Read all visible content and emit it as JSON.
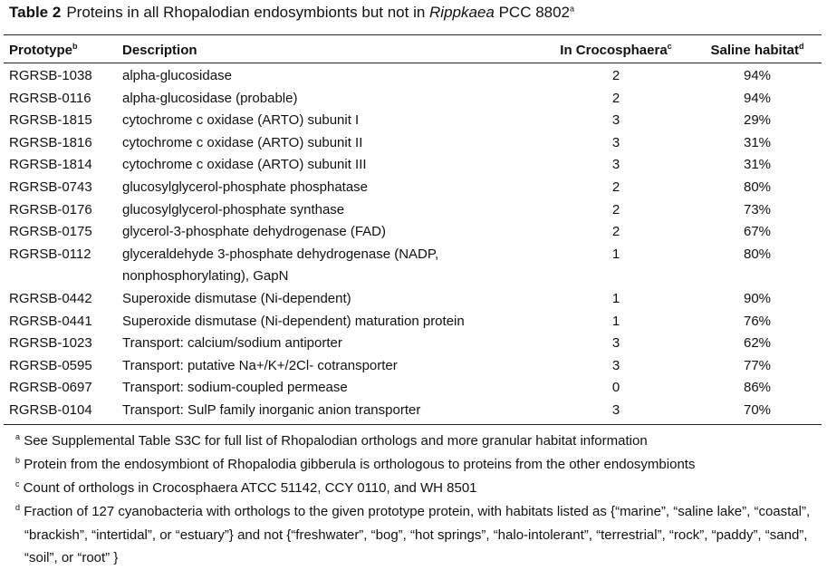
{
  "caption": {
    "label": "Table 2",
    "text_pre": "Proteins in all Rhopalodian endosymbionts but not in ",
    "text_italic": "Rippkaea",
    "text_post": " PCC 8802",
    "sup": "a"
  },
  "headers": {
    "prototype": "Prototype",
    "prototype_sup": "b",
    "description": "Description",
    "crocosphaera": "In Crocosphaera",
    "crocosphaera_sup": "c",
    "saline": "Saline habitat",
    "saline_sup": "d"
  },
  "rows": [
    {
      "prototype": "RGRSB-1038",
      "description": "alpha-glucosidase",
      "crocosphaera": "2",
      "saline": "94%"
    },
    {
      "prototype": "RGRSB-0116",
      "description": "alpha-glucosidase (probable)",
      "crocosphaera": "2",
      "saline": "94%"
    },
    {
      "prototype": "RGRSB-1815",
      "description": "cytochrome c oxidase (ARTO) subunit I",
      "crocosphaera": "3",
      "saline": "29%"
    },
    {
      "prototype": "RGRSB-1816",
      "description": "cytochrome c oxidase (ARTO) subunit II",
      "crocosphaera": "3",
      "saline": "31%"
    },
    {
      "prototype": "RGRSB-1814",
      "description": "cytochrome c oxidase (ARTO) subunit III",
      "crocosphaera": "3",
      "saline": "31%"
    },
    {
      "prototype": "RGRSB-0743",
      "description": "glucosylglycerol-phosphate phosphatase",
      "crocosphaera": "2",
      "saline": "80%"
    },
    {
      "prototype": "RGRSB-0176",
      "description": "glucosylglycerol-phosphate synthase",
      "crocosphaera": "2",
      "saline": "73%"
    },
    {
      "prototype": "RGRSB-0175",
      "description": "glycerol-3-phosphate dehydrogenase (FAD)",
      "crocosphaera": "2",
      "saline": "67%"
    },
    {
      "prototype": "RGRSB-0112",
      "description": "glyceraldehyde 3-phosphate dehydrogenase (NADP,",
      "description_cont": "nonphosphorylating), GapN",
      "crocosphaera": "1",
      "saline": "80%"
    },
    {
      "prototype": "RGRSB-0442",
      "description": "Superoxide dismutase (Ni-dependent)",
      "crocosphaera": "1",
      "saline": "90%"
    },
    {
      "prototype": "RGRSB-0441",
      "description": "Superoxide dismutase (Ni-dependent) maturation protein",
      "crocosphaera": "1",
      "saline": "76%"
    },
    {
      "prototype": "RGRSB-1023",
      "description": "Transport: calcium/sodium antiporter",
      "crocosphaera": "3",
      "saline": "62%"
    },
    {
      "prototype": "RGRSB-0595",
      "description": "Transport: putative Na+/K+/2Cl- cotransporter",
      "crocosphaera": "3",
      "saline": "77%"
    },
    {
      "prototype": "RGRSB-0697",
      "description": "Transport: sodium-coupled permease",
      "crocosphaera": "0",
      "saline": "86%"
    },
    {
      "prototype": "RGRSB-0104",
      "description": "Transport: SulP family inorganic anion transporter",
      "crocosphaera": "3",
      "saline": "70%"
    }
  ],
  "footnotes": [
    {
      "mark": "a",
      "text": "See Supplemental Table S3C for full list of Rhopalodian orthologs and more granular habitat information"
    },
    {
      "mark": "b",
      "text": "Protein from the endosymbiont of Rhopalodia gibberula is orthologous to proteins from the other endosymbionts"
    },
    {
      "mark": "c",
      "text": "Count of orthologs in Crocosphaera ATCC 51142, CCY 0110, and WH 8501"
    },
    {
      "mark": "d",
      "text": "Fraction of 127 cyanobacteria with orthologs to the given prototype protein, with habitats listed as {“marine”, “saline lake”, “coastal”, “brackish”, “intertidal”, or “estuary”} and not {“freshwater”, “bog”, “hot springs”, “halo-intolerant”, “terrestrial”, “rock”, “paddy”, “sand”, “soil”, or “root” }"
    }
  ]
}
